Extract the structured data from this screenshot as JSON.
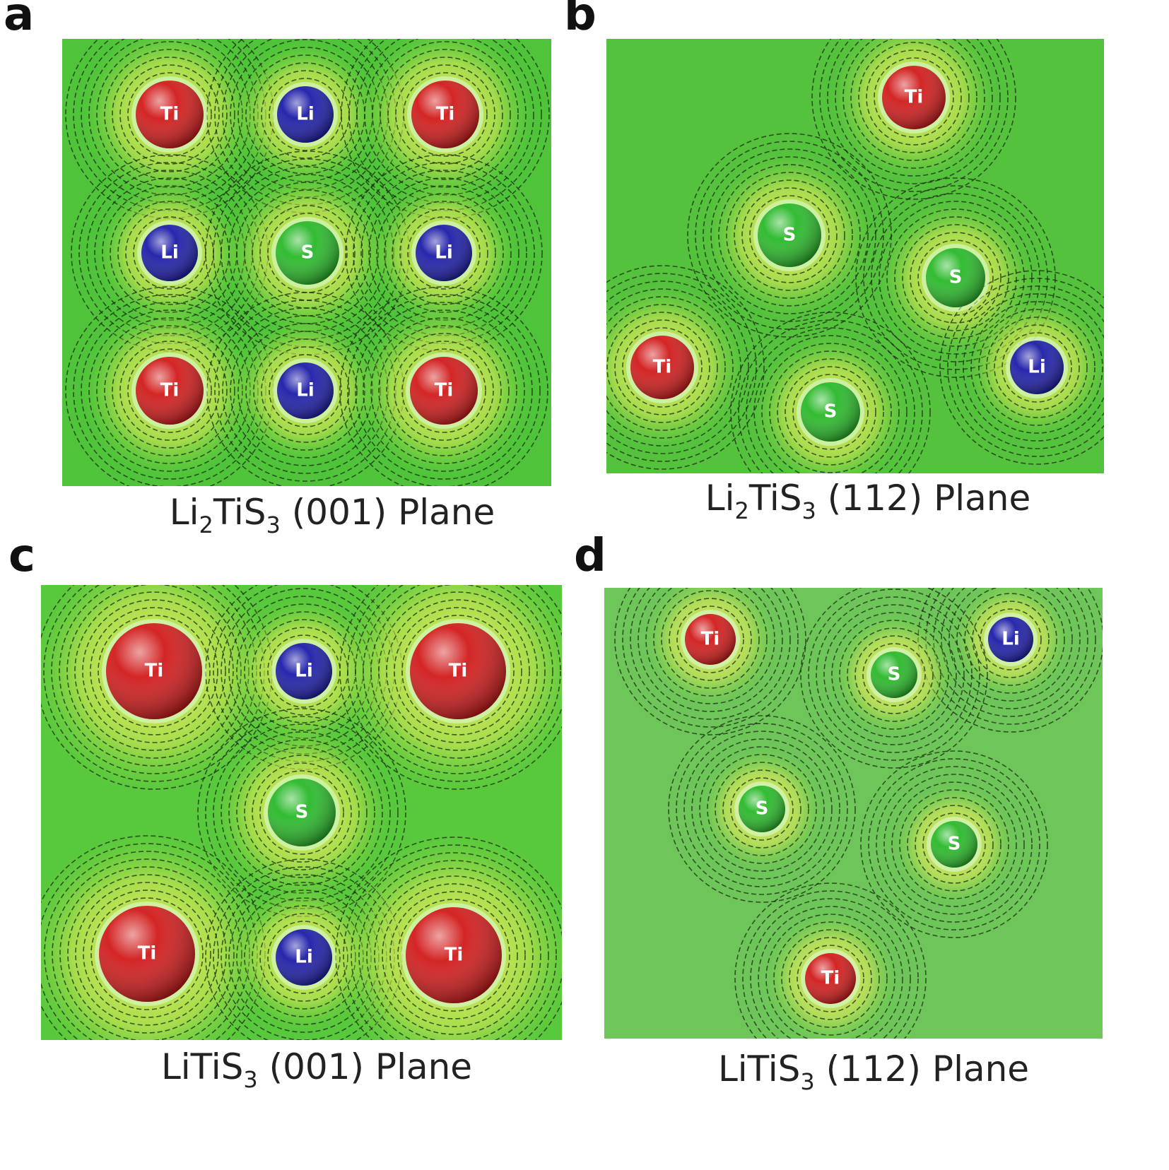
{
  "panels": [
    {
      "label": "a",
      "caption": [
        {
          "text": "Li"
        },
        {
          "text": "2",
          "sub": true
        },
        {
          "text": "TiS"
        },
        {
          "text": "3",
          "sub": true
        },
        {
          "text": " (001) Plane"
        }
      ],
      "atoms": [
        {
          "label": "Ti",
          "color": "#d11a1a"
        },
        {
          "label": "Li",
          "color": "#1c1ca8"
        },
        {
          "label": "Ti",
          "color": "#d11a1a"
        },
        {
          "label": "Li",
          "color": "#1c1ca8"
        },
        {
          "label": "S",
          "color": "#28b828"
        },
        {
          "label": "Li",
          "color": "#1c1ca8"
        },
        {
          "label": "Ti",
          "color": "#d11a1a"
        },
        {
          "label": "Li",
          "color": "#1c1ca8"
        },
        {
          "label": "Ti",
          "color": "#d11a1a"
        }
      ]
    },
    {
      "label": "b",
      "caption": [
        {
          "text": "Li"
        },
        {
          "text": "2",
          "sub": true
        },
        {
          "text": "TiS"
        },
        {
          "text": "3",
          "sub": true
        },
        {
          "text": " (112) Plane"
        }
      ],
      "atoms": [
        {
          "label": "Ti",
          "color": "#d11a1a"
        },
        {
          "label": "S",
          "color": "#28b828"
        },
        {
          "label": "S",
          "color": "#28b828"
        },
        {
          "label": "Ti",
          "color": "#d11a1a"
        },
        {
          "label": "Li",
          "color": "#1c1ca8"
        },
        {
          "label": "S",
          "color": "#28b828"
        }
      ]
    },
    {
      "label": "c",
      "caption": [
        {
          "text": "LiTiS"
        },
        {
          "text": "3",
          "sub": true
        },
        {
          "text": " (001) Plane"
        }
      ],
      "atoms": [
        {
          "label": "Ti",
          "color": "#d11a1a"
        },
        {
          "label": "Li",
          "color": "#1c1ca8"
        },
        {
          "label": "Ti",
          "color": "#d11a1a"
        },
        {
          "label": "S",
          "color": "#28b828"
        },
        {
          "label": "Ti",
          "color": "#d11a1a"
        },
        {
          "label": "Li",
          "color": "#1c1ca8"
        },
        {
          "label": "Ti",
          "color": "#d11a1a"
        }
      ]
    },
    {
      "label": "d",
      "caption": [
        {
          "text": "LiTiS"
        },
        {
          "text": "3",
          "sub": true
        },
        {
          "text": " (112) Plane"
        }
      ],
      "atoms": [
        {
          "label": "Ti",
          "color": "#d11a1a"
        },
        {
          "label": "Li",
          "color": "#1c1ca8"
        },
        {
          "label": "S",
          "color": "#28b828"
        },
        {
          "label": "S",
          "color": "#28b828"
        },
        {
          "label": "S",
          "color": "#28b828"
        },
        {
          "label": "Ti",
          "color": "#d11a1a"
        }
      ]
    }
  ]
}
